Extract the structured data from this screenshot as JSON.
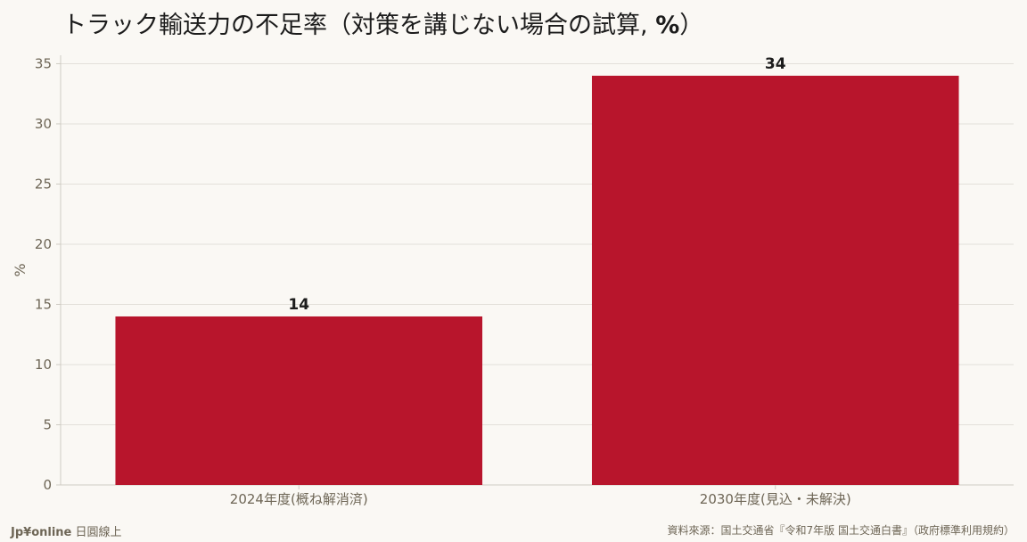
{
  "title": "トラック輸送力の不足率（対策を講じない場合の試算,",
  "title_unit": "%",
  "title_close": "）",
  "footer": {
    "brand": "Jp¥online",
    "brand_suffix": "日圓線上",
    "source": "資料來源：国土交通省『令和7年版 国土交通白書』（政府標準利用規約）"
  },
  "colors": {
    "bar": "#b8152c",
    "grid": "#e3e0da",
    "axis": "#cfcbc3",
    "tick_text": "#6e6656",
    "value_label": "#1c1c1c"
  },
  "chart_data": {
    "type": "bar",
    "categories": [
      "2024年度(概ね解消済)",
      "2030年度(見込・未解決)"
    ],
    "values": [
      14,
      34
    ],
    "data_labels": [
      "14",
      "34"
    ],
    "title": "トラック輸送力の不足率（対策を講じない場合の試算, %）",
    "xlabel": "",
    "ylabel": "%",
    "ylim": [
      0,
      35.7
    ],
    "yticks": [
      0,
      5,
      10,
      15,
      20,
      25,
      30,
      35
    ],
    "grid": true
  }
}
